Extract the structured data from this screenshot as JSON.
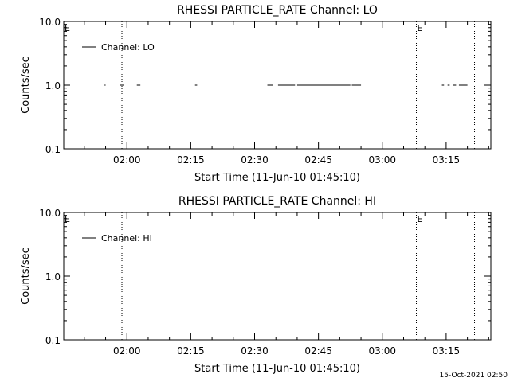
{
  "chart_data": [
    {
      "type": "line",
      "title": "RHESSI PARTICLE_RATE Channel: LO",
      "xlabel": "Start Time (11-Jun-10 01:45:10)",
      "ylabel": "Counts/sec",
      "yscale": "log",
      "ylim": [
        0.1,
        10.0
      ],
      "xlim": [
        "01:45:10",
        "03:25:30"
      ],
      "y_tick_labels": [
        "10.0",
        "1.0",
        "0.1"
      ],
      "y_ticks": [
        10.0,
        1.0,
        0.1
      ],
      "x_tick_labels": [
        "02:00",
        "02:15",
        "02:30",
        "02:45",
        "03:00",
        "03:15"
      ],
      "x_ticks": [
        "02:00",
        "02:15",
        "02:30",
        "02:45",
        "03:00",
        "03:15"
      ],
      "legend": {
        "label": "Channel: LO",
        "position": "top-left"
      },
      "markers": [
        {
          "label": "E",
          "x": "01:45:10"
        },
        {
          "label": "",
          "x": "01:58:50"
        },
        {
          "label": "E",
          "x": "03:08:00"
        },
        {
          "label": "",
          "x": "03:21:40"
        }
      ],
      "series": [
        {
          "name": "Channel: LO",
          "segments": [
            {
              "x": [
                "01:54:45",
                "01:55:00"
              ],
              "y": [
                1.0,
                1.0
              ]
            },
            {
              "x": [
                "01:58:20",
                "01:59:20"
              ],
              "y": [
                1.0,
                1.0
              ]
            },
            {
              "x": [
                "02:02:20",
                "02:03:10"
              ],
              "y": [
                1.0,
                1.0
              ]
            },
            {
              "x": [
                "02:16:00",
                "02:16:30"
              ],
              "y": [
                1.0,
                1.0
              ]
            },
            {
              "x": [
                "02:33:00",
                "02:34:20"
              ],
              "y": [
                1.0,
                1.0
              ]
            },
            {
              "x": [
                "02:35:30",
                "02:39:30"
              ],
              "y": [
                1.0,
                1.0
              ]
            },
            {
              "x": [
                "02:40:00",
                "02:52:30"
              ],
              "y": [
                1.0,
                1.0
              ]
            },
            {
              "x": [
                "02:52:50",
                "02:55:00"
              ],
              "y": [
                1.0,
                1.0
              ]
            },
            {
              "x": [
                "03:14:00",
                "03:14:30"
              ],
              "y": [
                1.0,
                1.0
              ]
            },
            {
              "x": [
                "03:15:20",
                "03:15:50"
              ],
              "y": [
                1.0,
                1.0
              ]
            },
            {
              "x": [
                "03:16:40",
                "03:17:20"
              ],
              "y": [
                1.0,
                1.0
              ]
            },
            {
              "x": [
                "03:18:00",
                "03:20:00"
              ],
              "y": [
                1.0,
                1.0
              ]
            }
          ]
        }
      ]
    },
    {
      "type": "line",
      "title": "RHESSI PARTICLE_RATE Channel: HI",
      "xlabel": "Start Time (11-Jun-10 01:45:10)",
      "ylabel": "Counts/sec",
      "yscale": "log",
      "ylim": [
        0.1,
        10.0
      ],
      "xlim": [
        "01:45:10",
        "03:25:30"
      ],
      "y_tick_labels": [
        "10.0",
        "1.0",
        "0.1"
      ],
      "y_ticks": [
        10.0,
        1.0,
        0.1
      ],
      "x_tick_labels": [
        "02:00",
        "02:15",
        "02:30",
        "02:45",
        "03:00",
        "03:15"
      ],
      "x_ticks": [
        "02:00",
        "02:15",
        "02:30",
        "02:45",
        "03:00",
        "03:15"
      ],
      "legend": {
        "label": "Channel: HI",
        "position": "top-left"
      },
      "markers": [
        {
          "label": "E",
          "x": "01:45:10"
        },
        {
          "label": "",
          "x": "01:58:50"
        },
        {
          "label": "E",
          "x": "03:08:00"
        },
        {
          "label": "",
          "x": "03:21:40"
        }
      ],
      "series": [
        {
          "name": "Channel: HI",
          "segments": []
        }
      ]
    }
  ],
  "footer": {
    "timestamp": "15-Oct-2021 02:50"
  }
}
